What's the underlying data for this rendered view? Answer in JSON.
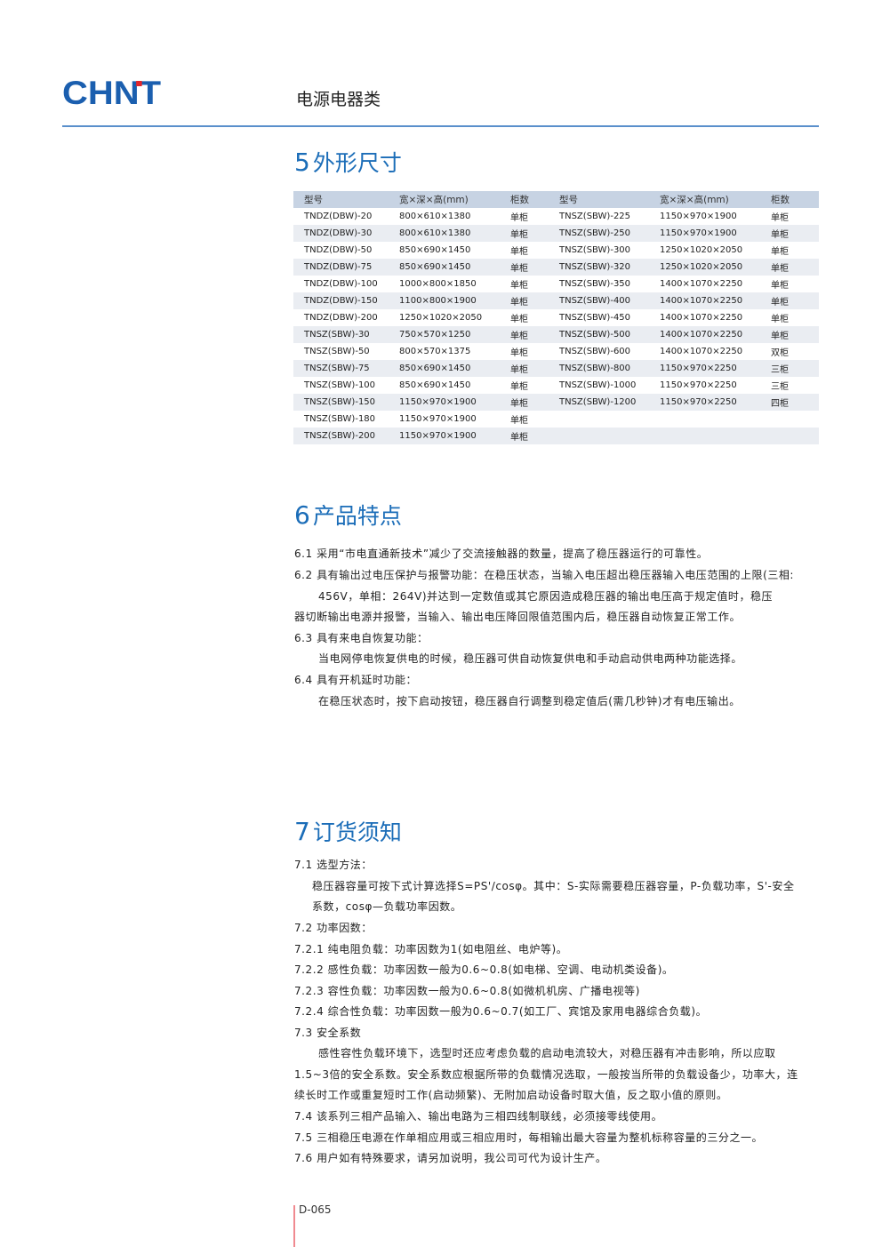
{
  "header": {
    "logo": "CHNT",
    "category": "电源电器类"
  },
  "section5": {
    "num": "5",
    "title": "外形尺寸",
    "columns": [
      "型号",
      "宽×深×高(mm)",
      "柜数",
      "型号",
      "宽×深×高(mm)",
      "柜数"
    ],
    "rows": [
      [
        "TNDZ(DBW)-20",
        "800×610×1380",
        "单柜",
        "TNSZ(SBW)-225",
        "1150×970×1900",
        "单柜"
      ],
      [
        "TNDZ(DBW)-30",
        "800×610×1380",
        "单柜",
        "TNSZ(SBW)-250",
        "1150×970×1900",
        "单柜"
      ],
      [
        "TNDZ(DBW)-50",
        "850×690×1450",
        "单柜",
        "TNSZ(SBW)-300",
        "1250×1020×2050",
        "单柜"
      ],
      [
        "TNDZ(DBW)-75",
        "850×690×1450",
        "单柜",
        "TNSZ(SBW)-320",
        "1250×1020×2050",
        "单柜"
      ],
      [
        "TNDZ(DBW)-100",
        "1000×800×1850",
        "单柜",
        "TNSZ(SBW)-350",
        "1400×1070×2250",
        "单柜"
      ],
      [
        "TNDZ(DBW)-150",
        "1100×800×1900",
        "单柜",
        "TNSZ(SBW)-400",
        "1400×1070×2250",
        "单柜"
      ],
      [
        "TNDZ(DBW)-200",
        "1250×1020×2050",
        "单柜",
        "TNSZ(SBW)-450",
        "1400×1070×2250",
        "单柜"
      ],
      [
        "TNSZ(SBW)-30",
        "750×570×1250",
        "单柜",
        "TNSZ(SBW)-500",
        "1400×1070×2250",
        "单柜"
      ],
      [
        "TNSZ(SBW)-50",
        "800×570×1375",
        "单柜",
        "TNSZ(SBW)-600",
        "1400×1070×2250",
        "双柜"
      ],
      [
        "TNSZ(SBW)-75",
        "850×690×1450",
        "单柜",
        "TNSZ(SBW)-800",
        "1150×970×2250",
        "三柜"
      ],
      [
        "TNSZ(SBW)-100",
        "850×690×1450",
        "单柜",
        "TNSZ(SBW)-1000",
        "1150×970×2250",
        "三柜"
      ],
      [
        "TNSZ(SBW)-150",
        "1150×970×1900",
        "单柜",
        "TNSZ(SBW)-1200",
        "1150×970×2250",
        "四柜"
      ],
      [
        "TNSZ(SBW)-180",
        "1150×970×1900",
        "单柜",
        "",
        "",
        ""
      ],
      [
        "TNSZ(SBW)-200",
        "1150×970×1900",
        "单柜",
        "",
        "",
        ""
      ]
    ]
  },
  "section6": {
    "num": "6",
    "title": "产品特点",
    "lines": [
      "6.1 采用“市电直通新技术”减少了交流接触器的数量，提高了稳压器运行的可靠性。",
      "6.2 具有输出过电压保护与报警功能：在稳压状态，当输入电压超出稳压器输入电压范围的上限(三相:",
      "456V，单相：264V)并达到一定数值或其它原因造成稳压器的输出电压高于规定值时，稳压",
      "器切断输出电源并报警，当输入、输出电压降回限值范围内后，稳压器自动恢复正常工作。",
      "6.3 具有来电自恢复功能：",
      "当电网停电恢复供电的时候，稳压器可供自动恢复供电和手动启动供电两种功能选择。",
      "6.4 具有开机延时功能：",
      "在稳压状态时，按下启动按钮，稳压器自行调整到稳定值后(需几秒钟)才有电压输出。"
    ]
  },
  "section7": {
    "num": "7",
    "title": "订货须知",
    "lines": [
      "7.1 选型方法：",
      "稳压器容量可按下式计算选择S=PS'/cosφ。其中：S-实际需要稳压器容量，P-负载功率，S'-安全",
      "系数，cosφ—负载功率因数。",
      "7.2 功率因数：",
      "7.2.1 纯电阻负载：功率因数为1(如电阻丝、电炉等)。",
      "7.2.2 感性负载：功率因数一般为0.6~0.8(如电梯、空调、电动机类设备)。",
      "7.2.3 容性负载：功率因数一般为0.6~0.8(如微机机房、广播电视等)",
      "7.2.4 综合性负载：功率因数一般为0.6~0.7(如工厂、宾馆及家用电器综合负载)。",
      "7.3 安全系数",
      "感性容性负载环境下，选型时还应考虑负载的启动电流较大，对稳压器有冲击影响，所以应取",
      "1.5~3倍的安全系数。安全系数应根据所带的负载情况选取，一般按当所带的负载设备少，功率大，连",
      "续长时工作或重复短时工作(启动频繁)、无附加启动设备时取大值，反之取小值的原则。",
      "7.4 该系列三相产品输入、输出电路为三相四线制联线，必须接零线使用。",
      "7.5 三相稳压电源在作单相应用或三相应用时，每相输出最大容量为整机标称容量的三分之一。",
      "7.6 用户如有特殊要求，请另加说明，我公司可代为设计生产。"
    ]
  },
  "footer": {
    "page": "D-065"
  },
  "colors": {
    "brand": "#1b5faf",
    "accent": "#1b6db8",
    "logo_dot": "#e3262b",
    "table_header": "#c7d3e3"
  }
}
